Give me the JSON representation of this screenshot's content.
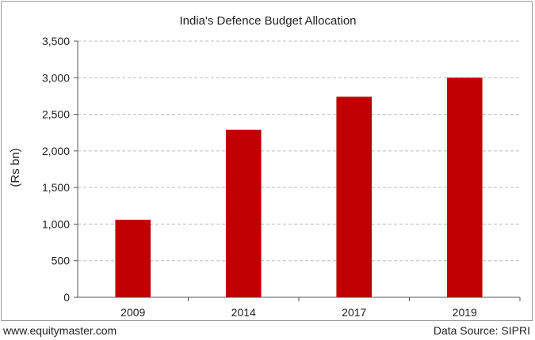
{
  "chart_data": {
    "type": "bar",
    "title": "India's Defence Budget Allocation",
    "ylabel": "(Rs bn)",
    "xlabel": "",
    "categories": [
      "2009",
      "2014",
      "2017",
      "2019"
    ],
    "values": [
      1060,
      2290,
      2740,
      3000
    ],
    "ylim": [
      0,
      3500
    ],
    "yticks": [
      0,
      500,
      1000,
      1500,
      2000,
      2500,
      3000,
      3500
    ],
    "ytick_labels": [
      "0",
      "500",
      "1,000",
      "1,500",
      "2,000",
      "2,500",
      "3,000",
      "3,500"
    ],
    "grid": true,
    "bar_color": "#c00000"
  },
  "footer": {
    "website": "www.equitymaster.com",
    "source": "Data Source: SIPRI"
  }
}
